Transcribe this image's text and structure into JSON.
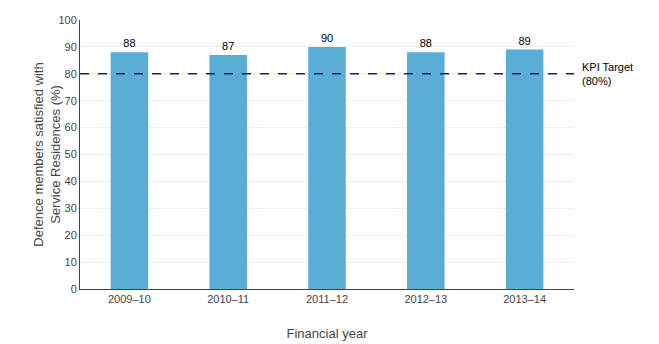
{
  "chart_data": {
    "type": "bar",
    "categories": [
      "2009–10",
      "2010–11",
      "2011–12",
      "2012–13",
      "2013–14"
    ],
    "values": [
      88,
      87,
      90,
      88,
      89
    ],
    "color": "#5aadd4",
    "data_labels": true,
    "xlabel": "Financial year",
    "ylabel": "Defence members satisfied with\nService Residences (%)",
    "ylim": [
      0,
      100
    ],
    "yticks": [
      0,
      10,
      20,
      30,
      40,
      50,
      60,
      70,
      80,
      90,
      100
    ],
    "grid": true,
    "reference_lines": [
      {
        "y": 80,
        "label": "KPI Target\n(80%)",
        "color": "#1a1a6e",
        "line_style": "dashed"
      }
    ]
  }
}
